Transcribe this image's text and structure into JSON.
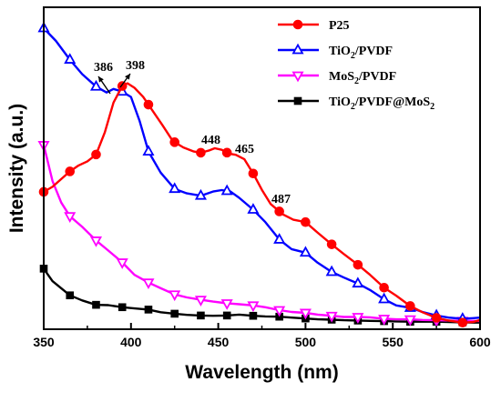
{
  "chart_data": {
    "type": "line",
    "title": "",
    "xlabel": "Wavelength (nm)",
    "ylabel": "Intensity (a.u.)",
    "xlim": [
      350,
      600
    ],
    "ylim": [
      0,
      100
    ],
    "xticks": [
      350,
      400,
      450,
      500,
      550,
      600
    ],
    "xtick_labels": [
      "350",
      "400",
      "450",
      "500",
      "550",
      "600"
    ],
    "y_tick_labels_shown": false,
    "legend_position": "top-right",
    "series": [
      {
        "name": "P25",
        "name_main": "P25",
        "name_sub": "",
        "name_tail": "",
        "color": "#ff0000",
        "marker": "circle",
        "x": [
          350,
          355,
          360,
          365,
          370,
          375,
          380,
          385,
          390,
          395,
          398,
          402,
          407,
          412,
          418,
          424,
          430,
          436,
          440,
          445,
          448,
          452,
          456,
          460,
          465,
          470,
          475,
          480,
          487,
          493,
          500,
          507,
          515,
          522,
          530,
          537,
          545,
          552,
          560,
          567,
          575,
          582,
          590,
          596,
          600
        ],
        "y": [
          44.8,
          46.5,
          49.1,
          51.7,
          53.7,
          55.1,
          57.4,
          64.9,
          74.9,
          80.5,
          81.4,
          79.9,
          76.8,
          72.5,
          67.3,
          61.9,
          59.8,
          58.4,
          58.0,
          58.8,
          59.5,
          59.0,
          57.7,
          57.3,
          55.8,
          51.0,
          45.5,
          40.7,
          37.2,
          35.4,
          34.6,
          31.0,
          27.1,
          23.8,
          20.2,
          16.8,
          12.5,
          9.8,
          6.3,
          4.2,
          2.3,
          1.4,
          0.7,
          0.9,
          1.6
        ]
      },
      {
        "name": "TiO2/PVDF",
        "name_main": "TiO",
        "name_sub": "2",
        "name_tail": "/PVDF",
        "color": "#0000ff",
        "marker": "triangle-up-open",
        "x": [
          350,
          357,
          365,
          372,
          380,
          386,
          390,
          395,
          400,
          405,
          410,
          417,
          425,
          432,
          440,
          447,
          452,
          457,
          462,
          470,
          477,
          485,
          492,
          500,
          507,
          515,
          522,
          530,
          537,
          545,
          552,
          560,
          567,
          575,
          582,
          590,
          596,
          600
        ],
        "y": [
          100,
          95.7,
          89.4,
          84.5,
          80.3,
          78.3,
          79.5,
          78.6,
          76.8,
          68.6,
          58.4,
          51.3,
          45.8,
          44.3,
          43.5,
          44.9,
          45.4,
          44.9,
          42.8,
          38.8,
          34.6,
          28.7,
          25.5,
          24.3,
          20.9,
          17.8,
          15.9,
          13.9,
          11.7,
          8.6,
          6.5,
          5.7,
          4.3,
          3.1,
          2.4,
          2.0,
          2.2,
          2.4
        ]
      },
      {
        "name": "MoS2/PVDF",
        "name_main": "MoS",
        "name_sub": "2",
        "name_tail": "/PVDF",
        "color": "#ff00ff",
        "marker": "triangle-down-open",
        "x": [
          350,
          355,
          360,
          365,
          372,
          380,
          387,
          395,
          402,
          410,
          417,
          425,
          432,
          440,
          447,
          455,
          462,
          470,
          477,
          485,
          492,
          500,
          507,
          515,
          522,
          530,
          537,
          545,
          552,
          560,
          567,
          575,
          582,
          590,
          596,
          600
        ],
        "y": [
          60.6,
          48.5,
          41.2,
          36.6,
          33.0,
          28.4,
          25.0,
          21.0,
          16.8,
          14.2,
          12.3,
          10.2,
          9.2,
          8.4,
          7.8,
          7.2,
          6.9,
          6.5,
          5.9,
          4.9,
          4.3,
          4.0,
          3.4,
          3.0,
          2.6,
          2.6,
          2.5,
          2.0,
          1.8,
          1.8,
          1.6,
          1.5,
          1.4,
          1.3,
          1.3,
          1.2
        ]
      },
      {
        "name": "TiO2/PVDF@MoS2",
        "name_main": "TiO",
        "name_sub": "2",
        "name_tail": "/PVDF@MoS",
        "name_sub2": "2",
        "color": "#000000",
        "marker": "square",
        "x": [
          350,
          355,
          360,
          365,
          372,
          380,
          387,
          395,
          402,
          410,
          417,
          425,
          432,
          440,
          447,
          455,
          462,
          470,
          477,
          485,
          492,
          500,
          507,
          515,
          522,
          530,
          537,
          545,
          552,
          560,
          567,
          575,
          582,
          590,
          596,
          600
        ],
        "y": [
          18.9,
          14.7,
          12.3,
          9.9,
          8.2,
          6.7,
          6.6,
          5.9,
          5.5,
          5.1,
          4.2,
          3.7,
          3.3,
          3.1,
          3.0,
          3.1,
          3.4,
          3.0,
          2.8,
          2.7,
          2.4,
          2.1,
          1.8,
          1.7,
          1.5,
          1.4,
          1.3,
          1.2,
          1.1,
          1.0,
          1.0,
          1.0,
          0.9,
          0.8,
          0.7,
          0.7
        ]
      }
    ],
    "marker_x": {
      "P25": [
        350,
        365,
        380,
        395,
        410,
        425,
        440,
        455,
        470,
        485,
        500,
        515,
        530,
        545,
        560,
        575,
        590
      ],
      "TiO2/PVDF": [
        350,
        365,
        380,
        395,
        410,
        425,
        440,
        455,
        470,
        485,
        500,
        515,
        530,
        545,
        560,
        575,
        590
      ],
      "MoS2/PVDF": [
        350,
        365,
        380,
        395,
        410,
        425,
        440,
        455,
        470,
        485,
        500,
        515,
        530,
        545,
        560,
        575,
        590
      ],
      "TiO2/PVDF@MoS2": [
        350,
        365,
        380,
        395,
        410,
        425,
        440,
        455,
        470,
        485,
        500,
        515,
        530,
        545,
        560,
        575,
        590
      ]
    },
    "annotations": [
      {
        "text": "386",
        "x": 386,
        "y": 78.3,
        "arrow": true
      },
      {
        "text": "398",
        "x": 398,
        "y": 81.4,
        "arrow": true
      },
      {
        "text": "448",
        "x": 448,
        "y": 59.5,
        "arrow": false
      },
      {
        "text": "465",
        "x": 465,
        "y": 55.8,
        "arrow": false
      },
      {
        "text": "487",
        "x": 487,
        "y": 37.2,
        "arrow": false
      }
    ]
  }
}
